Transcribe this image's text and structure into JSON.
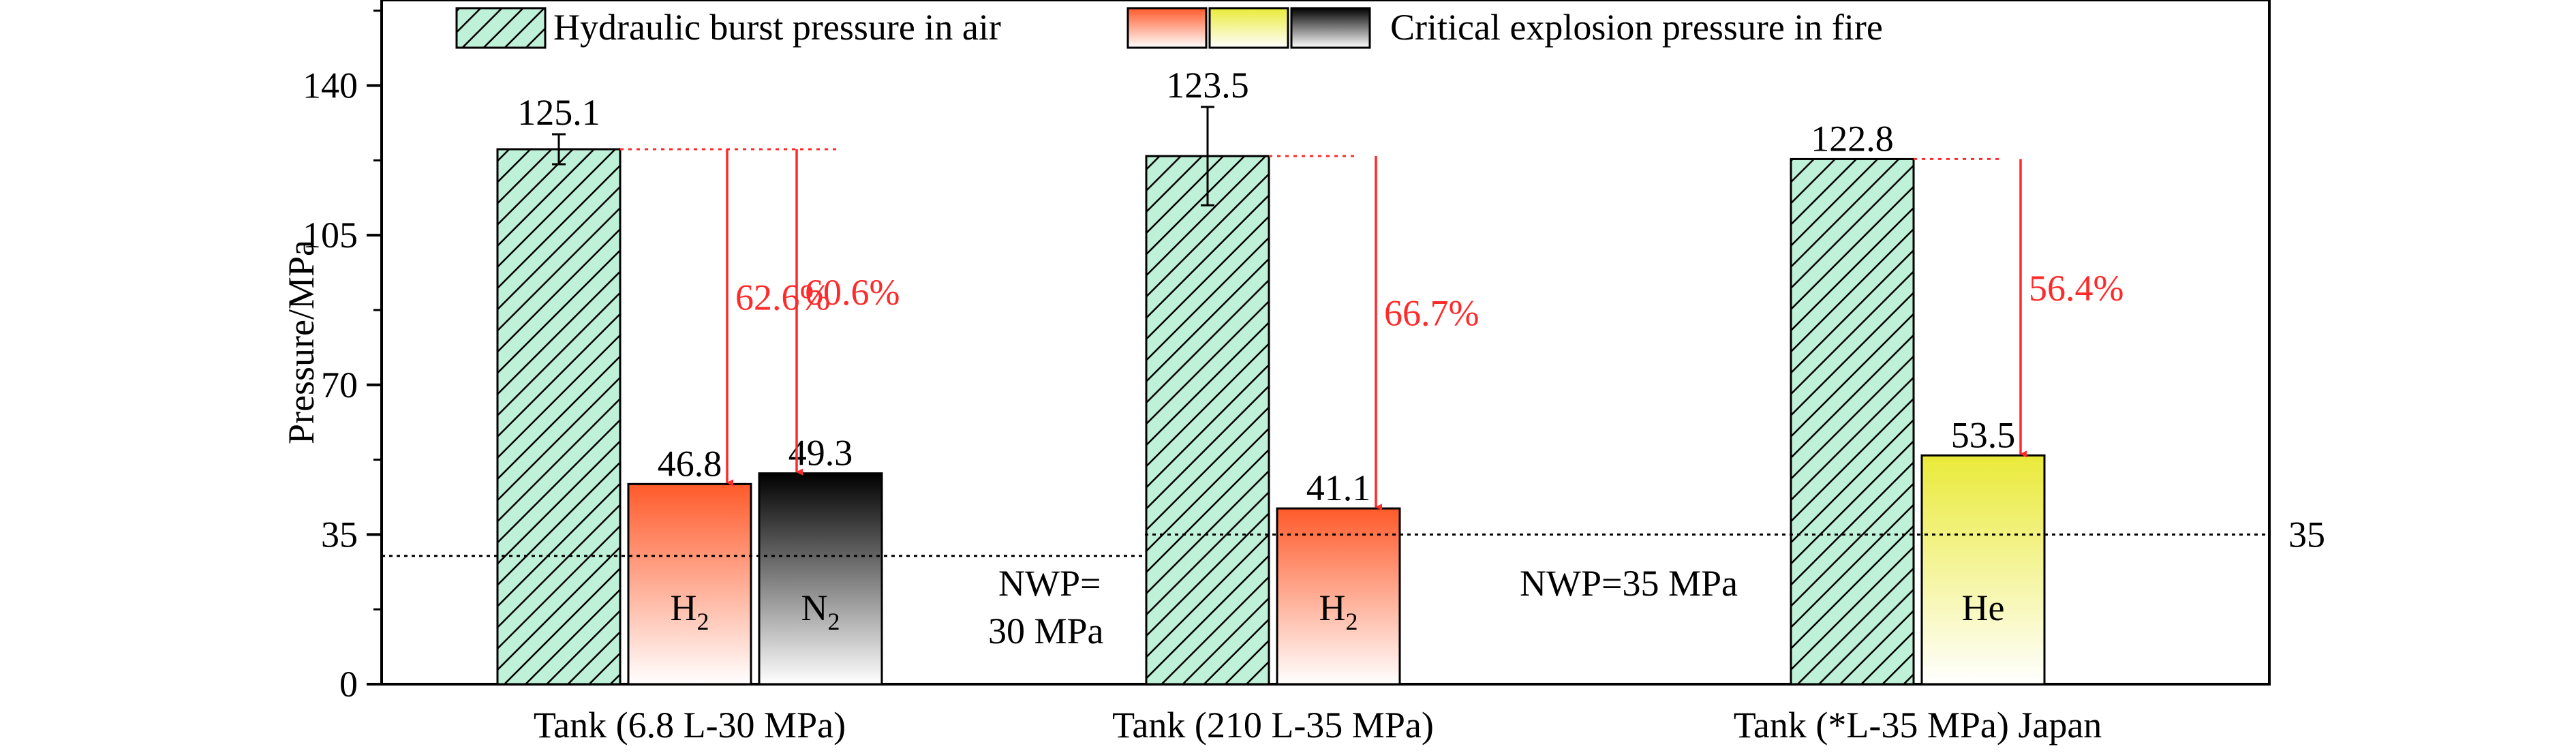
{
  "chart_data": {
    "type": "bar",
    "ylabel": "Pressure/MPa",
    "ylim": [
      0,
      160
    ],
    "yticks": [
      0,
      35,
      70,
      105,
      140
    ],
    "grid": false,
    "legend_position": "top",
    "legend": {
      "burst": "Hydraulic burst pressure in air",
      "fire": "Critical explosion pressure in fire"
    },
    "groups": [
      {
        "name": "Tank (6.8 L-30 MPa)",
        "bars": [
          {
            "kind": "burst",
            "value": 125.1,
            "label": "125.1",
            "error": 3.5
          },
          {
            "kind": "fire",
            "gas": "H",
            "gas_sub": "2",
            "value": 46.8,
            "label": "46.8",
            "color": "#ff5a2a"
          },
          {
            "kind": "fire",
            "gas": "N",
            "gas_sub": "2",
            "value": 49.3,
            "label": "49.3",
            "color": "#000000"
          }
        ],
        "arrows": [
          {
            "to_bar": 1,
            "label": "62.6%"
          },
          {
            "to_bar": 2,
            "label": "60.6%"
          }
        ],
        "nwp": {
          "value": 30,
          "text_line1": "NWP=",
          "text_line2": "30 MPa"
        }
      },
      {
        "name": "Tank (210 L-35 MPa)",
        "bars": [
          {
            "kind": "burst",
            "value": 123.5,
            "label": "123.5",
            "error": 11.5
          },
          {
            "kind": "fire",
            "gas": "H",
            "gas_sub": "2",
            "value": 41.1,
            "label": "41.1",
            "color": "#ff5a2a"
          }
        ],
        "arrows": [
          {
            "to_bar": 1,
            "label": "66.7%"
          }
        ],
        "nwp": {
          "value": 35,
          "text": "NWP=35 MPa"
        }
      },
      {
        "name": "Tank (*L-35 MPa) Japan",
        "bars": [
          {
            "kind": "burst",
            "value": 122.8,
            "label": "122.8"
          },
          {
            "kind": "fire",
            "gas": "He",
            "gas_sub": "",
            "value": 53.5,
            "label": "53.5",
            "color": "#eaea3a"
          }
        ],
        "arrows": [
          {
            "to_bar": 1,
            "label": "56.4%"
          }
        ]
      }
    ],
    "right_tick": {
      "value": 35,
      "label": "35"
    },
    "colors": {
      "burst_fill": "#bff0d8",
      "arrow": "#ff2a2a",
      "h2": "#ff5a2a",
      "n2": "#000000",
      "he": "#eaea3a"
    }
  }
}
